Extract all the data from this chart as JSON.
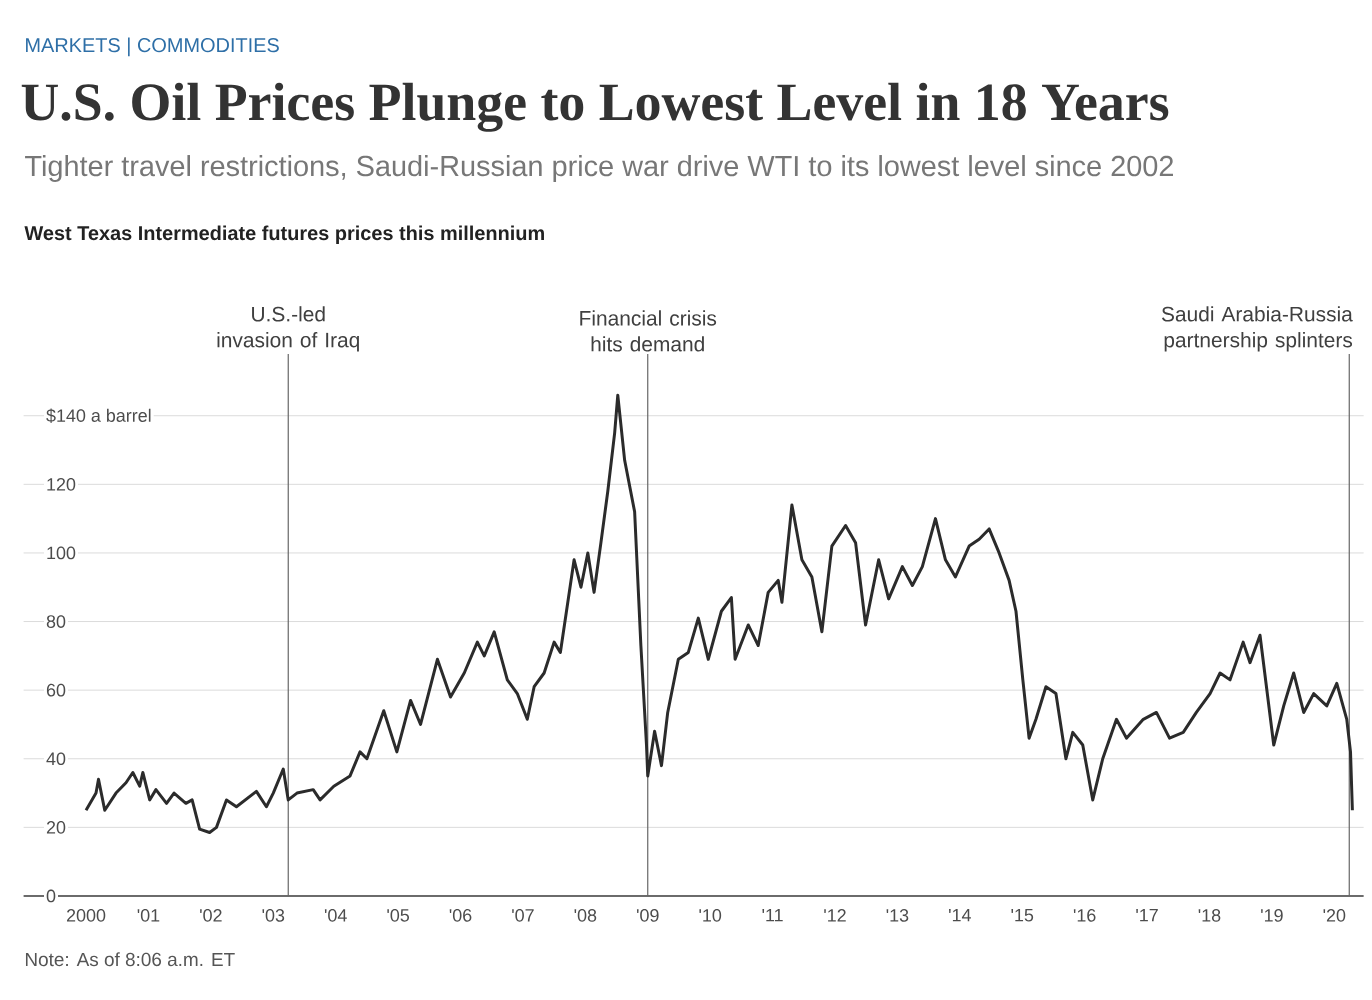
{
  "chart_data": {
    "type": "line",
    "title": "U.S. Oil Prices Plunge to Lowest Level in 18 Years",
    "subtitle": "Tighter travel restrictions, Saudi-Russian price war drive WTI to its lowest level since 2002",
    "annotations": [
      "MARKETS | COMMODITIES",
      "West Texas Intermediate futures prices this millennium",
      "Note: As of 8:06 a.m. ET"
    ],
    "x": [
      2000.0,
      2000.16,
      2000.2,
      2000.3,
      2000.48,
      2000.64,
      2000.75,
      2000.86,
      2000.91,
      2001.02,
      2001.12,
      2001.29,
      2001.41,
      2001.6,
      2001.7,
      2001.82,
      2001.98,
      2002.09,
      2002.25,
      2002.41,
      2002.73,
      2002.89,
      2003.0,
      2003.16,
      2003.24,
      2003.38,
      2003.64,
      2003.75,
      2003.97,
      2004.23,
      2004.39,
      2004.5,
      2004.77,
      2004.98,
      2005.2,
      2005.36,
      2005.63,
      2005.84,
      2006.06,
      2006.27,
      2006.38,
      2006.54,
      2006.75,
      2006.91,
      2007.07,
      2007.18,
      2007.34,
      2007.5,
      2007.6,
      2007.82,
      2007.93,
      2008.04,
      2008.14,
      2008.25,
      2008.36,
      2008.47,
      2008.52,
      2008.63,
      2008.79,
      2008.89,
      2008.98,
      2009.0,
      2009.11,
      2009.22,
      2009.32,
      2009.49,
      2009.65,
      2009.81,
      2009.97,
      2010.18,
      2010.34,
      2010.4,
      2010.61,
      2010.77,
      2010.93,
      2011.09,
      2011.15,
      2011.31,
      2011.47,
      2011.63,
      2011.79,
      2011.95,
      2012.17,
      2012.33,
      2012.49,
      2012.7,
      2012.86,
      2013.08,
      2013.24,
      2013.4,
      2013.61,
      2013.77,
      2013.93,
      2014.15,
      2014.31,
      2014.47,
      2014.63,
      2014.79,
      2014.9,
      2015.01,
      2015.11,
      2015.22,
      2015.38,
      2015.54,
      2015.7,
      2015.81,
      2015.97,
      2016.13,
      2016.29,
      2016.51,
      2016.67,
      2016.94,
      2017.15,
      2017.36,
      2017.58,
      2017.79,
      2018.01,
      2018.17,
      2018.33,
      2018.54,
      2018.65,
      2018.81,
      2019.03,
      2019.19,
      2019.35,
      2019.51,
      2019.67,
      2019.88,
      2020.04,
      2020.2,
      2020.26,
      2020.29
    ],
    "series": [
      {
        "color": "#2b2b2b",
        "values": [
          25,
          30,
          34,
          25,
          30,
          33,
          36,
          32,
          36,
          28,
          31,
          27,
          30,
          27,
          28,
          19.5,
          18.5,
          20,
          28,
          26,
          30.5,
          26,
          30,
          37,
          28,
          30,
          31,
          28,
          32,
          35,
          42,
          40,
          54,
          42,
          57,
          50,
          69,
          58,
          65,
          74,
          70,
          77,
          63,
          59,
          51.5,
          61,
          65,
          74,
          71,
          98,
          90,
          100,
          88.5,
          103,
          118,
          135,
          146,
          127,
          112,
          73,
          44,
          35,
          48,
          38,
          53.5,
          69,
          71,
          81,
          69,
          83,
          87,
          69,
          79,
          73,
          88.5,
          92,
          85.6,
          114,
          98,
          93,
          77,
          102,
          108,
          103,
          79,
          98,
          86.6,
          96,
          90.5,
          96,
          110,
          98,
          93,
          102,
          104,
          107,
          100,
          92,
          83,
          63,
          46,
          51.5,
          61,
          59,
          40,
          47.7,
          44,
          28,
          40,
          51.5,
          46,
          51.5,
          53.5,
          46,
          47.7,
          53.5,
          59,
          65,
          63,
          74,
          68,
          76,
          44,
          55.4,
          65,
          53.5,
          59,
          55.4,
          62,
          51.5,
          42,
          25
        ]
      }
    ],
    "xlim": [
      1999,
      2020.47
    ],
    "xticks": [
      {
        "value": 2000,
        "label": "2000"
      },
      {
        "value": 2001,
        "label": "'01"
      },
      {
        "value": 2002,
        "label": "'02"
      },
      {
        "value": 2003,
        "label": "'03"
      },
      {
        "value": 2004,
        "label": "'04"
      },
      {
        "value": 2005,
        "label": "'05"
      },
      {
        "value": 2006,
        "label": "'06"
      },
      {
        "value": 2007,
        "label": "'07"
      },
      {
        "value": 2008,
        "label": "'08"
      },
      {
        "value": 2009,
        "label": "'09"
      },
      {
        "value": 2010,
        "label": "'10"
      },
      {
        "value": 2011,
        "label": "'11"
      },
      {
        "value": 2012,
        "label": "'12"
      },
      {
        "value": 2013,
        "label": "'13"
      },
      {
        "value": 2014,
        "label": "'14"
      },
      {
        "value": 2015,
        "label": "'15"
      },
      {
        "value": 2016,
        "label": "'16"
      },
      {
        "value": 2017,
        "label": "'17"
      },
      {
        "value": 2018,
        "label": "'18"
      },
      {
        "value": 2019,
        "label": "'19"
      },
      {
        "value": 2020,
        "label": "'20"
      }
    ],
    "ylim": [
      0,
      158
    ],
    "yticks": [
      0,
      20,
      40,
      60,
      80,
      100,
      120,
      {
        "value": 140,
        "label": "$140 a barrel"
      }
    ],
    "grid": "y",
    "ref_lines": [
      {
        "axis": "x",
        "value": 2003.24,
        "label": "U.S.-led invasion of Iraq",
        "color": "#666666"
      },
      {
        "axis": "x",
        "value": 2009.0,
        "label": "Financial crisis hits demand",
        "color": "#666666"
      },
      {
        "axis": "x",
        "value": 2020.24,
        "label": "Saudi Arabia-Russia partnership splinters",
        "color": "#666666"
      }
    ]
  }
}
